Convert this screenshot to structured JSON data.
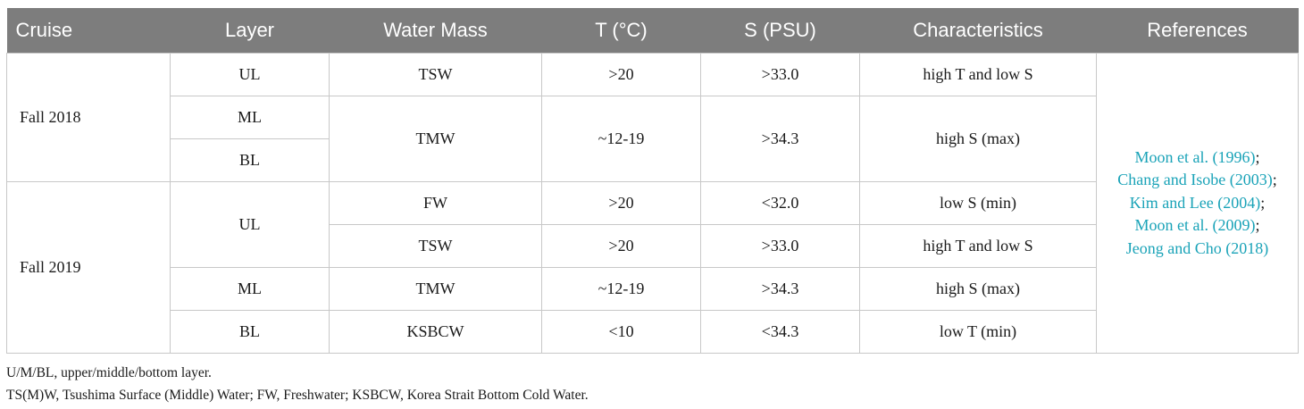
{
  "table": {
    "headers": [
      "Cruise",
      "Layer",
      "Water Mass",
      "T (°C)",
      "S (PSU)",
      "Characteristics",
      "References"
    ],
    "cruises": [
      "Fall 2018",
      "Fall 2019"
    ],
    "rows": {
      "r1": {
        "layer": "UL",
        "water_mass": "TSW",
        "t": ">20",
        "s": ">33.0",
        "char": "high T and low S"
      },
      "r2": {
        "layer": "ML",
        "water_mass": "TMW",
        "t": "~12-19",
        "s": ">34.3",
        "char": "high S (max)"
      },
      "r3": {
        "layer": "BL"
      },
      "r4": {
        "layer": "UL",
        "water_mass": "FW",
        "t": ">20",
        "s": "<32.0",
        "char": "low S (min)"
      },
      "r5": {
        "water_mass": "TSW",
        "t": ">20",
        "s": ">33.0",
        "char": "high T and low S"
      },
      "r6": {
        "layer": "ML",
        "water_mass": "TMW",
        "t": "~12-19",
        "s": ">34.3",
        "char": "high S (max)"
      },
      "r7": {
        "layer": "BL",
        "water_mass": "KSBCW",
        "t": "<10",
        "s": "<34.3",
        "char": "low T (min)"
      }
    },
    "references": [
      {
        "text": "Moon et al. (1996)",
        "punct": ";"
      },
      {
        "text": "Chang and Isobe (2003)",
        "punct": ";"
      },
      {
        "text": "Kim and Lee (2004)",
        "punct": ";"
      },
      {
        "text": "Moon et al. (2009)",
        "punct": ";"
      },
      {
        "text": "Jeong and Cho (2018)",
        "punct": ""
      }
    ]
  },
  "notes": [
    "U/M/BL, upper/middle/bottom layer.",
    "TS(M)W, Tsushima Surface (Middle) Water; FW, Freshwater; KSBCW, Korea Strait Bottom Cold Water."
  ],
  "colors": {
    "header_bg": "#7d7d7d",
    "header_text": "#ffffff",
    "reference_link": "#1aa3b8",
    "grid": "#c8c8c8"
  }
}
